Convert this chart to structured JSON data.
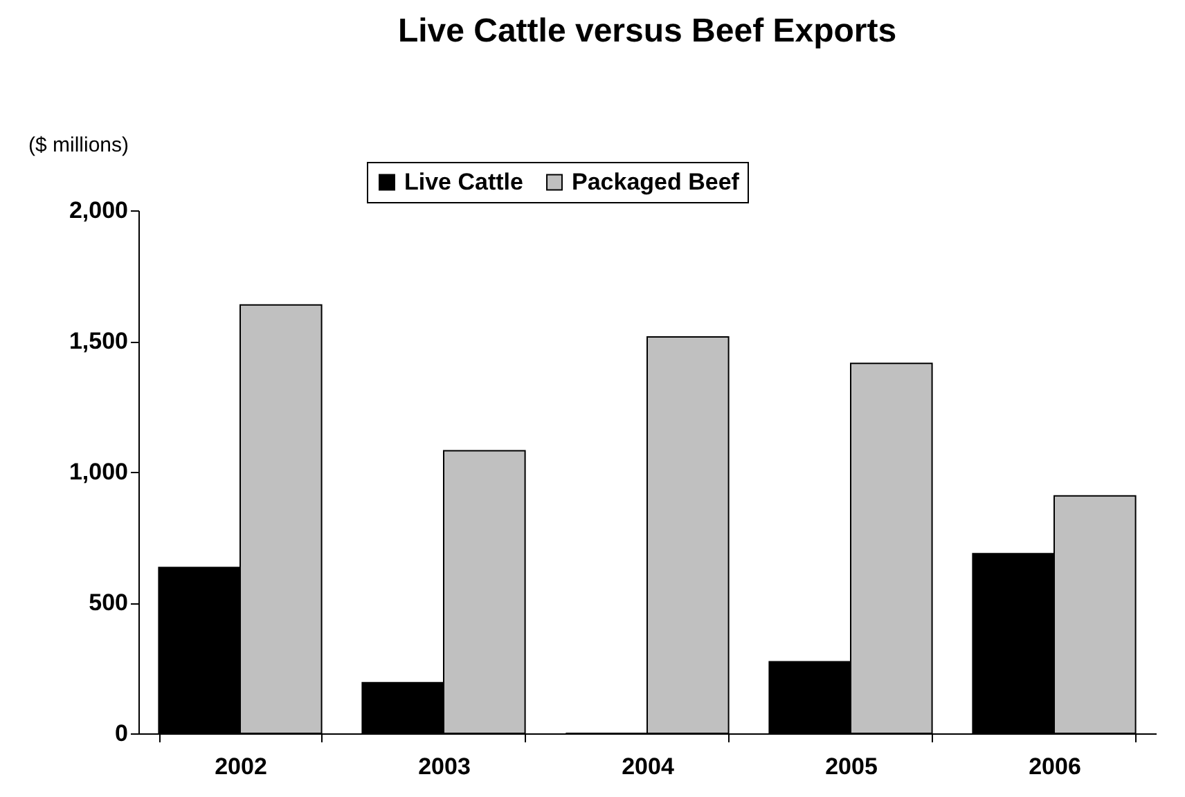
{
  "chart_data": {
    "type": "bar",
    "title": "Live Cattle versus Beef Exports",
    "ylabel": "($ millions)",
    "categories": [
      "2002",
      "2003",
      "2004",
      "2005",
      "2006"
    ],
    "series": [
      {
        "name": "Live Cattle",
        "color": "#000000",
        "values": [
          634,
          194,
          0,
          274,
          687
        ]
      },
      {
        "name": "Packaged Beef",
        "color": "#c0c0c0",
        "values": [
          1638,
          1081,
          1516,
          1415,
          908
        ]
      }
    ],
    "ylim": [
      0,
      2000
    ],
    "yticks": [
      0,
      500,
      {
        "value": 1000,
        "label": "1,000"
      },
      {
        "value": 1500,
        "label": "1,500"
      },
      {
        "value": 2000,
        "label": "2,000"
      }
    ],
    "grid": false,
    "legend": "top"
  }
}
